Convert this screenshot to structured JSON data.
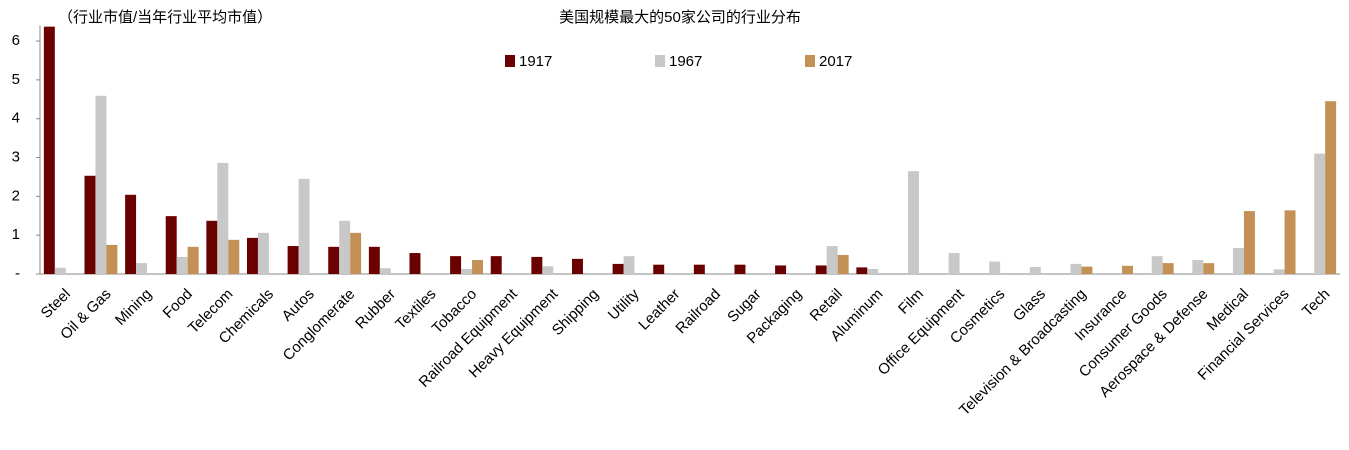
{
  "chart_data": {
    "type": "bar",
    "title": "美国规模最大的50家公司的行业分布",
    "y_label": "（行业市值/当年行业平均市值）",
    "categories": [
      "Steel",
      "Oil & Gas",
      "Mining",
      "Food",
      "Telecom",
      "Chemicals",
      "Autos",
      "Conglomerate",
      "Rubber",
      "Textiles",
      "Tobacco",
      "Railroad Equipment",
      "Heavy Equipment",
      "Shipping",
      "Utility",
      "Leather",
      "Railroad",
      "Sugar",
      "Packaging",
      "Retail",
      "Aluminum",
      "Film",
      "Office Equipment",
      "Cosmetics",
      "Glass",
      "Television & Broadcasting",
      "Insurance",
      "Consumer Goods",
      "Aerospace & Defense",
      "Medical",
      "Financial Services",
      "Tech"
    ],
    "series": [
      {
        "name": "1917",
        "color": "#6b0000",
        "values": [
          6.37,
          2.53,
          2.04,
          1.49,
          1.37,
          0.93,
          0.72,
          0.7,
          0.7,
          0.54,
          0.46,
          0.46,
          0.44,
          0.39,
          0.26,
          0.24,
          0.24,
          0.24,
          0.22,
          0.22,
          0.17,
          0,
          0,
          0,
          0,
          0,
          0,
          0,
          0,
          0,
          0,
          0
        ]
      },
      {
        "name": "1967",
        "color": "#c8c8c8",
        "values": [
          0.16,
          4.59,
          0.28,
          0.44,
          2.86,
          1.06,
          2.45,
          1.37,
          0.15,
          0,
          0.13,
          0,
          0.2,
          0,
          0.46,
          0,
          0,
          0,
          0,
          0.72,
          0.13,
          2.65,
          0.54,
          0.32,
          0.18,
          0.26,
          0,
          0.46,
          0.36,
          0.67,
          0.12,
          3.1
        ]
      },
      {
        "name": "2017",
        "color": "#c39155",
        "values": [
          0,
          0.75,
          0,
          0.7,
          0.88,
          0,
          0,
          1.06,
          0,
          0,
          0.36,
          0,
          0,
          0,
          0,
          0,
          0,
          0,
          0,
          0.49,
          0,
          0,
          0,
          0,
          0,
          0.19,
          0.21,
          0.28,
          0.28,
          1.62,
          1.64,
          4.45
        ]
      }
    ],
    "ylim": [
      0,
      6.4
    ],
    "yticks": [
      {
        "value": 0,
        "label": "-"
      },
      1,
      2,
      3,
      4,
      5,
      6
    ]
  }
}
